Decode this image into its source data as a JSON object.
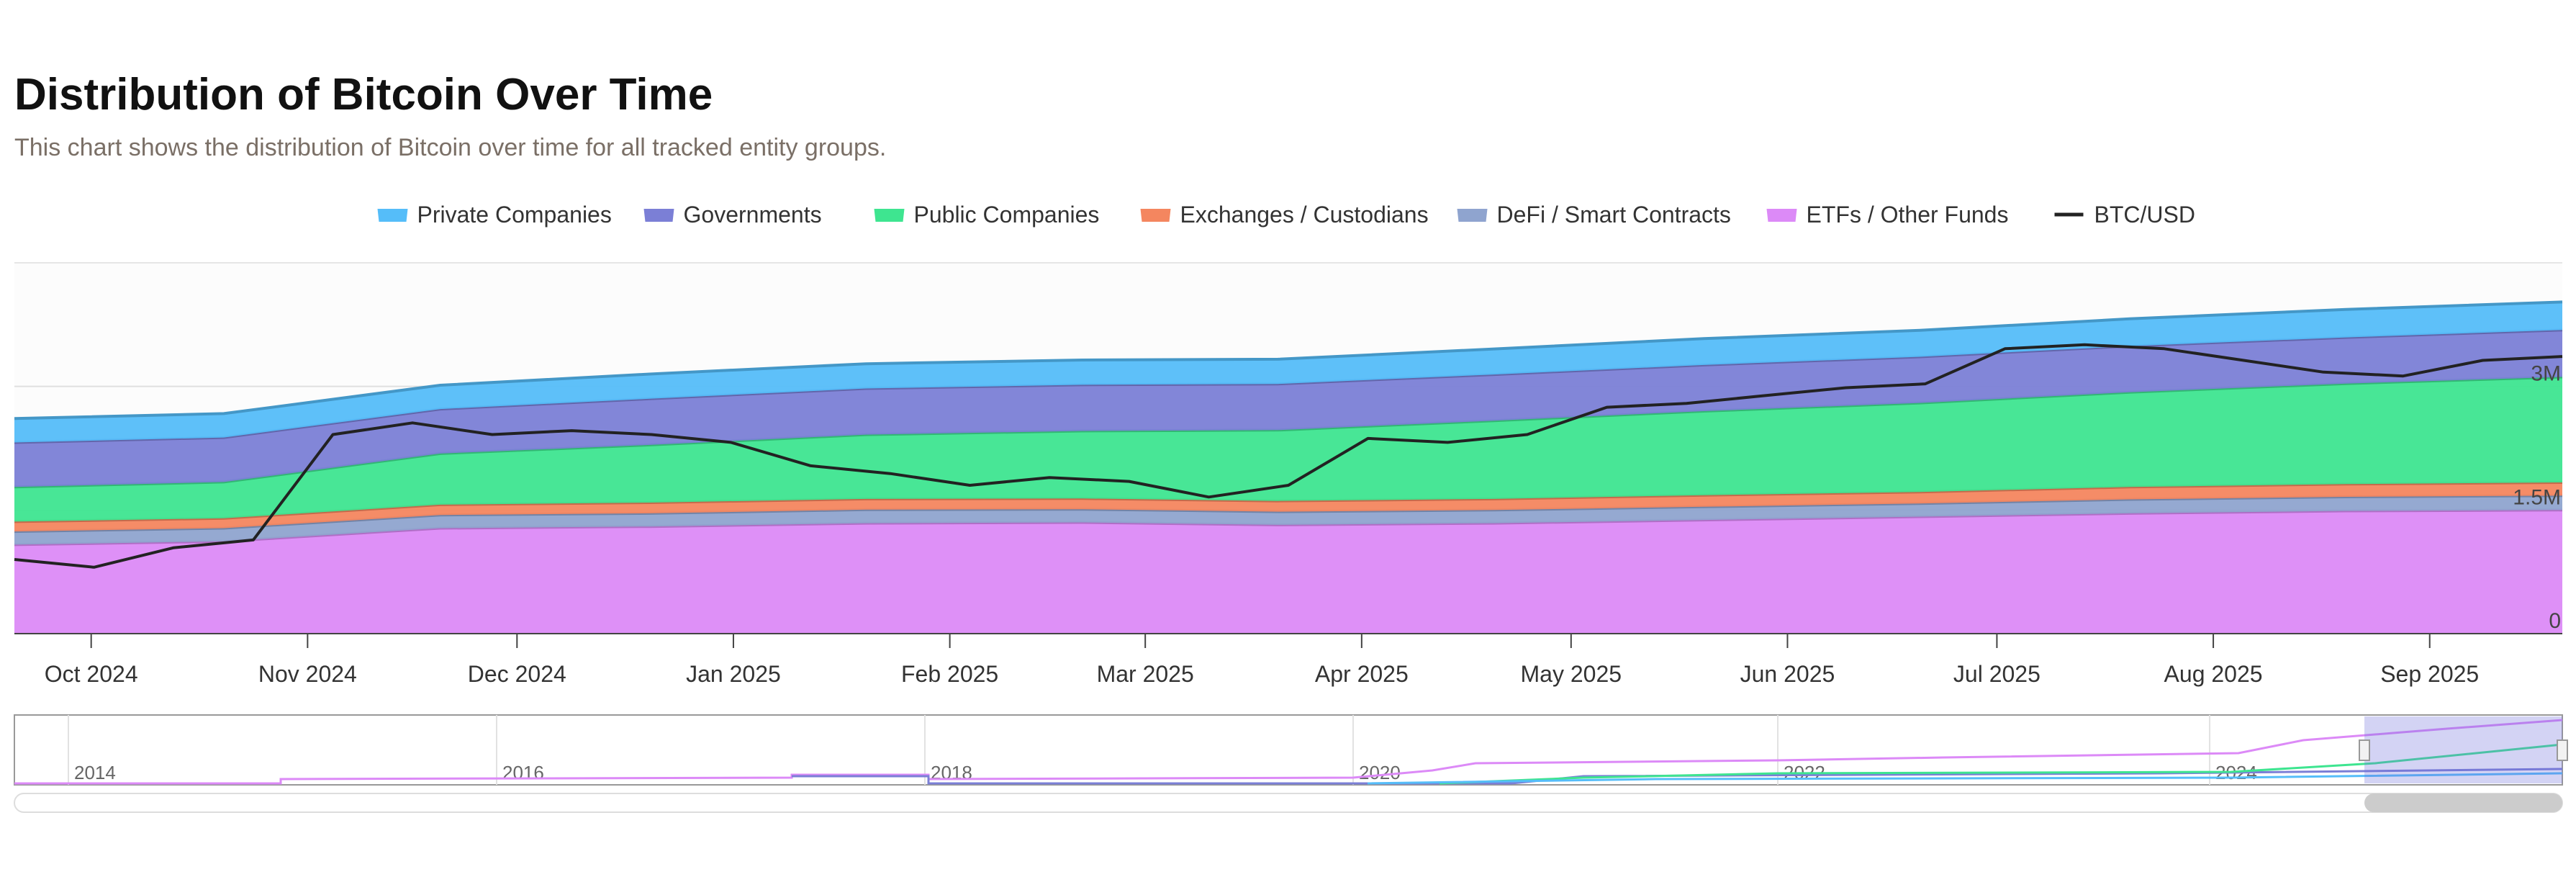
{
  "header": {
    "title": "Distribution of Bitcoin Over Time",
    "subtitle": "This chart shows the distribution of Bitcoin over time for all tracked entity groups."
  },
  "colors": {
    "private_companies": "#55bdf9",
    "governments": "#7b7fd6",
    "public_companies": "#3ee590",
    "exchanges": "#f4865f",
    "defi": "#8fa4cf",
    "etfs": "#dc8af7",
    "btc_usd": "#222222"
  },
  "chart_data": {
    "type": "area",
    "title": "Distribution of Bitcoin Over Time",
    "stacked": true,
    "x_axis": {
      "type": "date",
      "range": [
        "2024-09-20",
        "2025-09-20"
      ],
      "tick_labels": [
        "Oct 2024",
        "Nov 2024",
        "Dec 2024",
        "Jan 2025",
        "Feb 2025",
        "Mar 2025",
        "Apr 2025",
        "May 2025",
        "Jun 2025",
        "Jul 2025",
        "Aug 2025",
        "Sep 2025"
      ],
      "tick_dates": [
        "2024-10-01",
        "2024-11-01",
        "2024-12-01",
        "2025-01-01",
        "2025-02-01",
        "2025-03-01",
        "2025-04-01",
        "2025-05-01",
        "2025-06-01",
        "2025-07-01",
        "2025-08-01",
        "2025-09-01"
      ]
    },
    "y_axis": {
      "range": [
        0,
        4500000
      ],
      "tick_labels": [
        "0",
        "1.5M",
        "3M"
      ],
      "tick_values": [
        0,
        1500000,
        3000000
      ],
      "position": "right",
      "grid": true
    },
    "legend": {
      "placement": "top-center",
      "entries": [
        "Private Companies",
        "Governments",
        "Public Companies",
        "Exchanges / Custodians",
        "DeFi / Smart Contracts",
        "ETFs / Other Funds",
        "BTC/USD"
      ]
    },
    "x": [
      "2024-09-20",
      "2024-10-20",
      "2024-11-20",
      "2024-12-20",
      "2025-01-20",
      "2025-02-20",
      "2025-03-20",
      "2025-04-20",
      "2025-05-20",
      "2025-06-20",
      "2025-07-20",
      "2025-08-20",
      "2025-09-20"
    ],
    "series": [
      {
        "name": "ETFs / Other Funds",
        "color_key": "etfs",
        "values": [
          1080000,
          1120000,
          1280000,
          1300000,
          1340000,
          1350000,
          1320000,
          1340000,
          1380000,
          1420000,
          1460000,
          1490000,
          1500000
        ]
      },
      {
        "name": "DeFi / Smart Contracts",
        "color_key": "defi",
        "values": [
          160000,
          160000,
          160000,
          160000,
          165000,
          160000,
          160000,
          160000,
          160000,
          160000,
          170000,
          170000,
          175000
        ]
      },
      {
        "name": "Exchanges / Custodians",
        "color_key": "exchanges",
        "values": [
          120000,
          120000,
          125000,
          130000,
          130000,
          130000,
          130000,
          135000,
          140000,
          140000,
          150000,
          155000,
          160000
        ]
      },
      {
        "name": "Public Companies",
        "color_key": "public_companies",
        "values": [
          420000,
          440000,
          620000,
          700000,
          780000,
          820000,
          860000,
          950000,
          1020000,
          1080000,
          1150000,
          1220000,
          1280000
        ]
      },
      {
        "name": "Governments",
        "color_key": "governments",
        "values": [
          540000,
          540000,
          540000,
          560000,
          560000,
          560000,
          560000,
          560000,
          560000,
          560000,
          560000,
          560000,
          570000
        ]
      },
      {
        "name": "Private Companies",
        "color_key": "private_companies",
        "values": [
          290000,
          290000,
          290000,
          300000,
          300000,
          300000,
          300000,
          310000,
          320000,
          320000,
          330000,
          340000,
          340000
        ]
      }
    ],
    "line_series": {
      "name": "BTC/USD",
      "color_key": "btc_usd",
      "note_scale": "secondary, unlabeled",
      "values": [
        64000,
        62000,
        67000,
        69000,
        96000,
        99000,
        96000,
        97000,
        96000,
        94000,
        88000,
        86000,
        83000,
        85000,
        84000,
        80000,
        83000,
        95000,
        94000,
        96000,
        103000,
        104000,
        106000,
        108000,
        109000,
        118000,
        119000,
        118000,
        115000,
        112000,
        111000,
        115000,
        116000
      ]
    },
    "navigator": {
      "tick_labels": [
        "2014",
        "2016",
        "2018",
        "2020",
        "2022",
        "2024"
      ],
      "selected_range": [
        "2024-09-20",
        "2025-09-20"
      ]
    }
  }
}
